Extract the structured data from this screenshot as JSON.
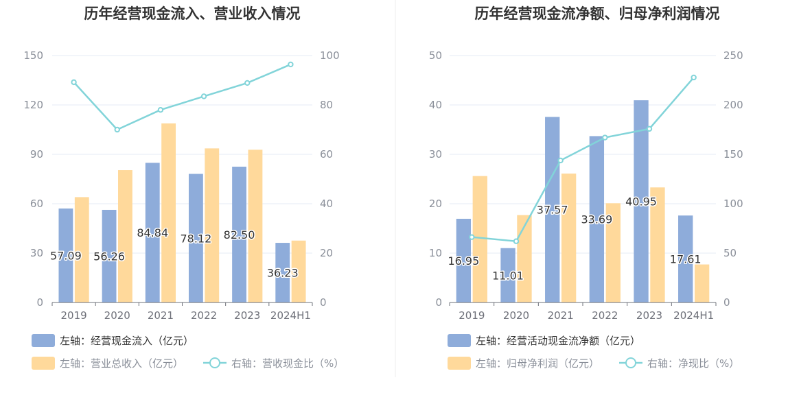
{
  "chart_data": [
    {
      "type": "bar",
      "title": "历年经营现金流入、营业收入情况",
      "categories": [
        "2019",
        "2020",
        "2021",
        "2022",
        "2023",
        "2024H1"
      ],
      "left_axis": {
        "min": 0,
        "max": 150,
        "ticks": [
          "0",
          "30",
          "60",
          "90",
          "120",
          "150"
        ]
      },
      "right_axis": {
        "min": 0,
        "max": 100,
        "ticks": [
          "0",
          "20",
          "40",
          "60",
          "80",
          "100"
        ]
      },
      "grid": true,
      "legend_position": "bottom-left",
      "series": [
        {
          "name": "左轴：经营现金流入（亿元）",
          "kind": "bar",
          "axis": "left",
          "color": "#8eacda",
          "values": [
            57.09,
            56.26,
            84.84,
            78.12,
            82.5,
            36.23
          ],
          "labels": [
            "57.09",
            "56.26",
            "84.84",
            "78.12",
            "82.50",
            "36.23"
          ]
        },
        {
          "name": "左轴：营业总收入（亿元）",
          "kind": "bar",
          "axis": "left",
          "color": "#ffd99b",
          "values": [
            64.0,
            80.4,
            108.8,
            93.6,
            92.8,
            37.6
          ]
        },
        {
          "name": "右轴：营收现金比（%）",
          "kind": "line",
          "axis": "right",
          "color": "#82d4d9",
          "values": [
            89.2,
            70.0,
            78.0,
            83.5,
            88.9,
            96.4
          ]
        }
      ]
    },
    {
      "type": "bar",
      "title": "历年经营现金流净额、归母净利润情况",
      "categories": [
        "2019",
        "2020",
        "2021",
        "2022",
        "2023",
        "2024H1"
      ],
      "left_axis": {
        "min": 0,
        "max": 50,
        "ticks": [
          "0",
          "10",
          "20",
          "30",
          "40",
          "50"
        ]
      },
      "right_axis": {
        "min": 0,
        "max": 250,
        "ticks": [
          "0",
          "50",
          "100",
          "150",
          "200",
          "250"
        ]
      },
      "grid": true,
      "legend_position": "bottom-left",
      "series": [
        {
          "name": "左轴：经营活动现金流净额（亿元）",
          "kind": "bar",
          "axis": "left",
          "color": "#8eacda",
          "values": [
            16.95,
            11.01,
            37.57,
            33.69,
            40.95,
            17.61
          ],
          "labels": [
            "16.95",
            "11.01",
            "37.57",
            "33.69",
            "40.95",
            "17.61"
          ]
        },
        {
          "name": "左轴：归母净利润（亿元）",
          "kind": "bar",
          "axis": "left",
          "color": "#ffd99b",
          "values": [
            25.6,
            17.7,
            26.1,
            20.1,
            23.3,
            7.7
          ]
        },
        {
          "name": "右轴：净现比（%）",
          "kind": "line",
          "axis": "right",
          "color": "#82d4d9",
          "values": [
            66.2,
            62.0,
            143.8,
            167.0,
            175.8,
            227.8
          ]
        }
      ]
    }
  ]
}
